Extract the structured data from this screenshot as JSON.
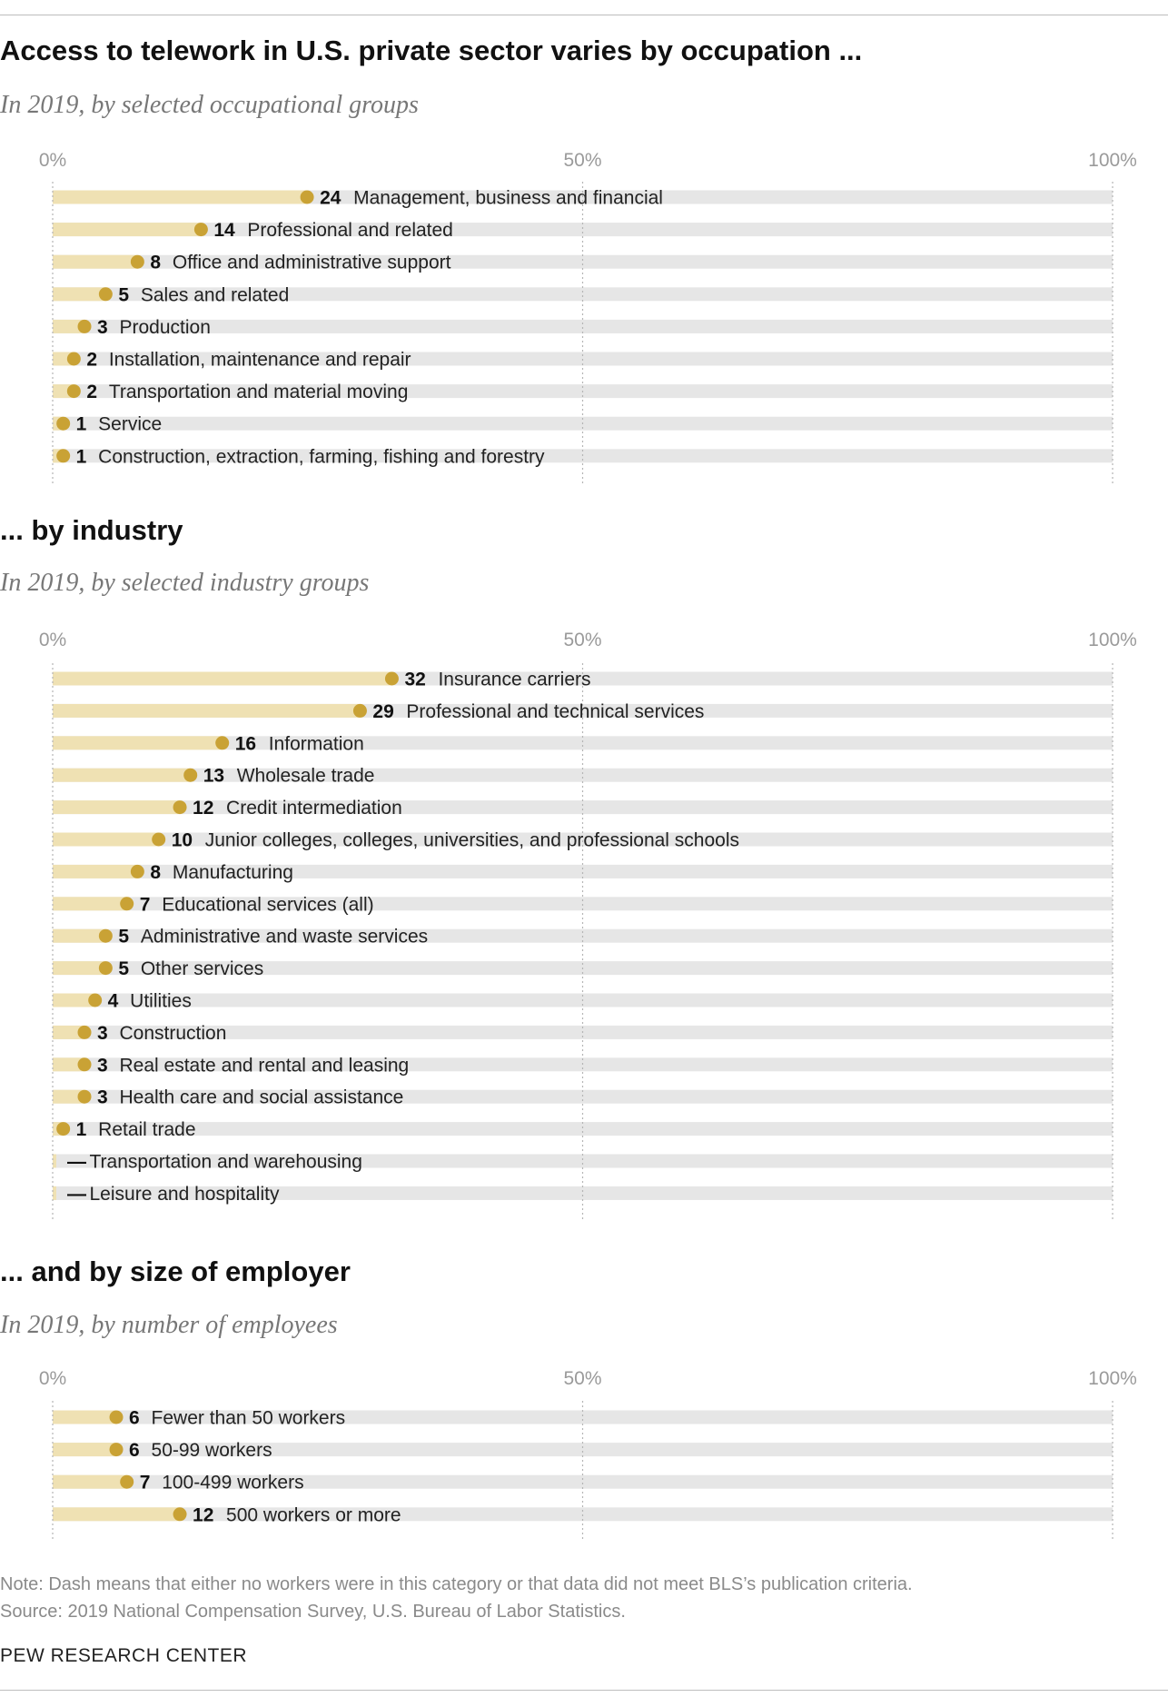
{
  "sections": [
    {
      "title": "Access to telework in U.S. private sector varies by occupation ...",
      "subtitle": "In 2019, by selected occupational groups"
    },
    {
      "title": "... by industry",
      "subtitle": "In 2019, by selected industry groups"
    },
    {
      "title": "... and by size of employer",
      "subtitle": "In 2019, by number of employees"
    }
  ],
  "colors": {
    "bar_fill": "#efe1b3",
    "bar_track": "#e6e6e6",
    "dot": "#c9a235",
    "gridline": "#b5b5b5"
  },
  "chart_data": [
    {
      "type": "bar",
      "orientation": "horizontal",
      "title": "Access to telework in U.S. private sector varies by occupation ...",
      "subtitle": "In 2019, by selected occupational groups",
      "xlim": [
        0,
        100
      ],
      "xticks": [
        "0%",
        "50%",
        "100%"
      ],
      "grid": true,
      "categories": [
        "Management, business and financial",
        "Professional and related",
        "Office and administrative support",
        "Sales and related",
        "Production",
        "Installation, maintenance and repair",
        "Transportation and material moving",
        "Service",
        "Construction, extraction, farming, fishing and forestry"
      ],
      "values": [
        24,
        14,
        8,
        5,
        3,
        2,
        2,
        1,
        1
      ],
      "value_labels": [
        "24",
        "14",
        "8",
        "5",
        "3",
        "2",
        "2",
        "1",
        "1"
      ]
    },
    {
      "type": "bar",
      "orientation": "horizontal",
      "title": "... by industry",
      "subtitle": "In 2019, by selected industry groups",
      "xlim": [
        0,
        100
      ],
      "xticks": [
        "0%",
        "50%",
        "100%"
      ],
      "grid": true,
      "categories": [
        "Insurance carriers",
        "Professional and technical services",
        "Information",
        "Wholesale trade",
        "Credit intermediation",
        "Junior colleges, colleges, universities, and professional schools",
        "Manufacturing",
        "Educational services (all)",
        "Administrative and waste services",
        "Other services",
        "Utilities",
        "Construction",
        "Real estate and rental and leasing",
        "Health care and social assistance",
        "Retail trade",
        "Transportation and warehousing",
        "Leisure and hospitality"
      ],
      "values": [
        32,
        29,
        16,
        13,
        12,
        10,
        8,
        7,
        5,
        5,
        4,
        3,
        3,
        3,
        1,
        null,
        null
      ],
      "value_labels": [
        "32",
        "29",
        "16",
        "13",
        "12",
        "10",
        "8",
        "7",
        "5",
        "5",
        "4",
        "3",
        "3",
        "3",
        "1",
        "—",
        "—"
      ]
    },
    {
      "type": "bar",
      "orientation": "horizontal",
      "title": "... and by size of employer",
      "subtitle": "In 2019, by number of employees",
      "xlim": [
        0,
        100
      ],
      "xticks": [
        "0%",
        "50%",
        "100%"
      ],
      "grid": true,
      "categories": [
        "Fewer than 50 workers",
        "50-99 workers",
        "100-499 workers",
        "500 workers or more"
      ],
      "values": [
        6,
        6,
        7,
        12
      ],
      "value_labels": [
        "6",
        "6",
        "7",
        "12"
      ]
    }
  ],
  "footer": {
    "note": "Note: Dash means that either no workers were in this category or that data did not meet BLS’s publication criteria.",
    "source": "Source: 2019 National Compensation Survey, U.S. Bureau of Labor Statistics.",
    "brand": "PEW RESEARCH CENTER"
  }
}
